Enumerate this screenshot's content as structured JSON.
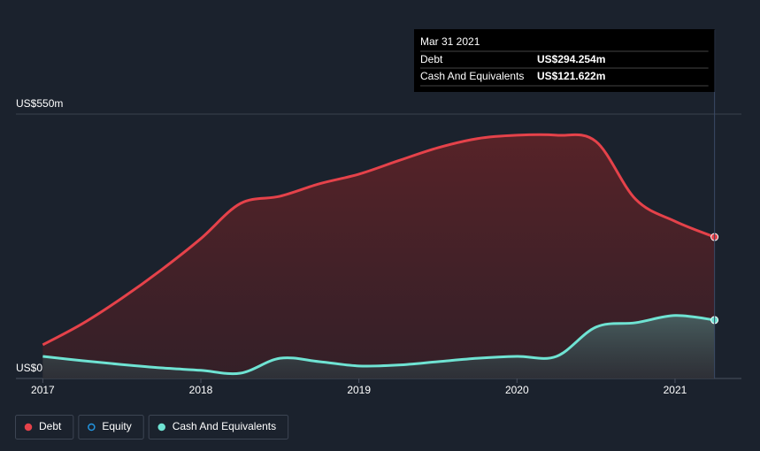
{
  "chart_data": {
    "type": "area-line",
    "x": [
      2017,
      2017.25,
      2017.5,
      2017.75,
      2018,
      2018.25,
      2018.5,
      2018.75,
      2019,
      2019.25,
      2019.5,
      2019.75,
      2020,
      2020.25,
      2020.5,
      2020.75,
      2021,
      2021.25
    ],
    "series": [
      {
        "name": "Debt",
        "color": "#e5424a",
        "values": [
          70,
          114,
          167,
          226,
          291,
          364,
          379,
          405,
          425,
          453,
          480,
          499,
          506,
          506,
          493,
          373,
          327,
          294.254
        ]
      },
      {
        "name": "Equity",
        "color": "#2394df",
        "visible": false,
        "values": [
          null,
          null,
          null,
          null,
          null,
          null,
          null,
          null,
          null,
          null,
          null,
          null,
          null,
          null,
          null,
          null,
          null,
          null
        ]
      },
      {
        "name": "Cash And Equivalents",
        "color": "#6fe3d3",
        "values": [
          46,
          37,
          29,
          22,
          17,
          11,
          42,
          35,
          26,
          28,
          35,
          42,
          46,
          46,
          107,
          116,
          131,
          121.622
        ]
      }
    ],
    "xlim": [
      2016.83,
      2021.42
    ],
    "xticks": [
      2017,
      2018,
      2019,
      2020,
      2021
    ],
    "ylim": [
      0,
      550
    ],
    "yticks": [
      {
        "value": 0,
        "label": "US$0"
      },
      {
        "value": 550,
        "label": "US$550m"
      }
    ],
    "grid": true,
    "tooltip": {
      "title": "Mar 31 2021",
      "rows": [
        {
          "name": "Debt",
          "value": "US$294.254m"
        },
        {
          "name": "Cash And Equivalents",
          "value": "US$121.622m"
        }
      ]
    }
  }
}
